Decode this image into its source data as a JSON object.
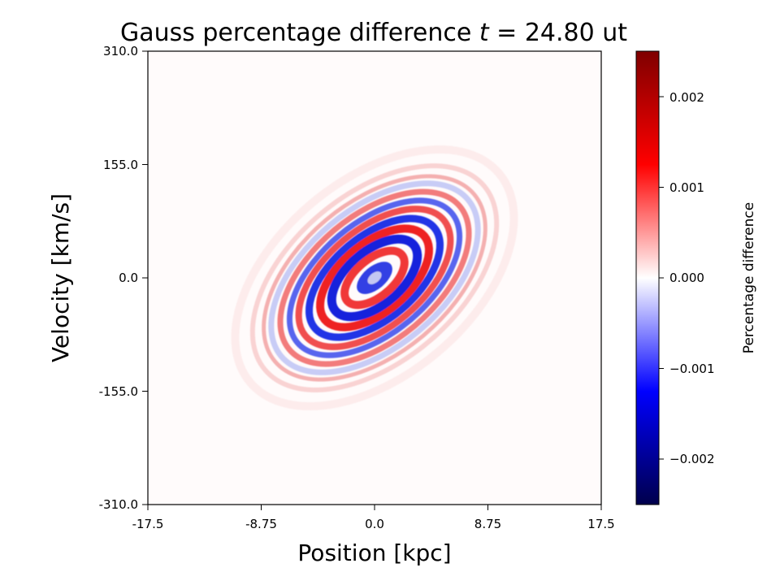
{
  "chart_data": {
    "type": "heatmap",
    "title": {
      "prefix": "Gauss percentage difference ",
      "variable": "t",
      "suffix": " =  24.80 ut"
    },
    "xlabel": "Position [kpc]",
    "ylabel": "Velocity [km/s]",
    "xlim": [
      -17.5,
      17.5
    ],
    "ylim": [
      -310.0,
      310.0
    ],
    "x_ticks": [
      "-17.5",
      "-8.75",
      "0.0",
      "8.75",
      "17.5"
    ],
    "y_ticks": [
      "310.0",
      "155.0",
      "0.0",
      "-155.0",
      "-310.0"
    ],
    "colorbar": {
      "label": "Percentage difference",
      "range": [
        -0.0025,
        0.0025
      ],
      "colormap": "seismic",
      "ticks": [
        "0.002",
        "0.001",
        "0.000",
        "−0.001",
        "−0.002"
      ]
    },
    "structure": {
      "description": "phase-space spiral of alternating positive/negative bands tilted along positive diagonal",
      "core_sign": "negative",
      "band_signs": [
        "negative",
        "positive",
        "negative",
        "positive",
        "negative",
        "positive"
      ]
    }
  }
}
